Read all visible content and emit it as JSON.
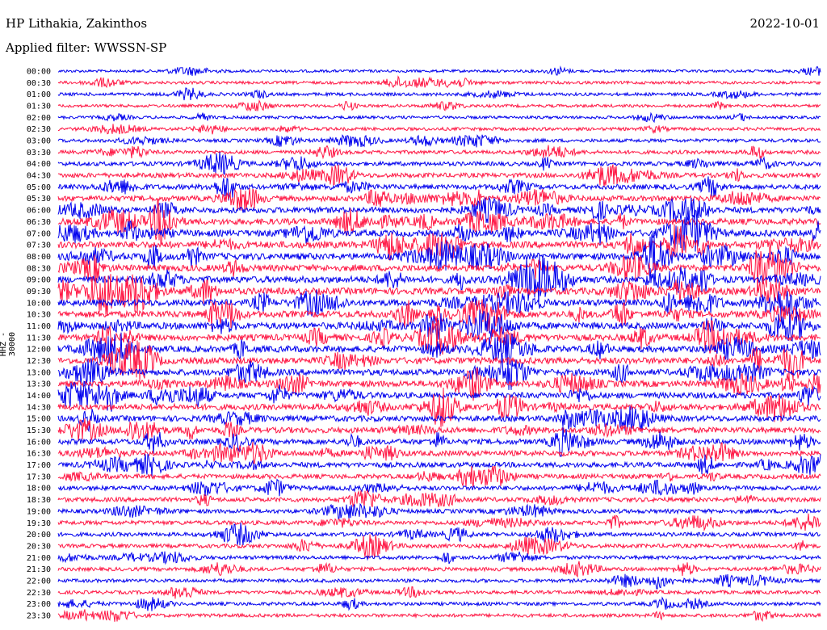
{
  "header": {
    "station": "HP Lithakia, Zakinthos",
    "date": "2022-10-01",
    "filter": "Applied filter: WWSSN-SP"
  },
  "chart_data": {
    "type": "line",
    "ylabel": "HHZ - 30000",
    "row_labels": [
      "00:00",
      "00:30",
      "01:00",
      "01:30",
      "02:00",
      "02:30",
      "03:00",
      "03:30",
      "04:00",
      "04:30",
      "05:00",
      "05:30",
      "06:00",
      "06:30",
      "07:00",
      "07:30",
      "08:00",
      "08:30",
      "09:00",
      "09:30",
      "10:00",
      "10:30",
      "11:00",
      "11:30",
      "12:00",
      "12:30",
      "13:00",
      "13:30",
      "14:00",
      "14:30",
      "15:00",
      "15:30",
      "16:00",
      "16:30",
      "17:00",
      "17:30",
      "18:00",
      "18:30",
      "19:00",
      "19:30",
      "20:00",
      "20:30",
      "21:00",
      "21:30",
      "22:00",
      "22:30",
      "23:00",
      "23:30"
    ],
    "colors": [
      "#0000ee",
      "#ff1744"
    ],
    "x_range_minutes": [
      0,
      30
    ],
    "relative_amplitude": [
      0.15,
      0.2,
      0.25,
      0.2,
      0.2,
      0.25,
      0.3,
      0.35,
      0.45,
      0.55,
      0.6,
      0.7,
      0.8,
      0.85,
      0.9,
      0.95,
      0.95,
      0.9,
      0.95,
      0.95,
      0.9,
      0.95,
      0.95,
      0.9,
      0.9,
      0.9,
      0.85,
      0.85,
      0.8,
      0.8,
      0.75,
      0.75,
      0.7,
      0.7,
      0.65,
      0.55,
      0.5,
      0.5,
      0.45,
      0.45,
      0.4,
      0.4,
      0.35,
      0.35,
      0.3,
      0.3,
      0.3,
      0.3
    ]
  }
}
